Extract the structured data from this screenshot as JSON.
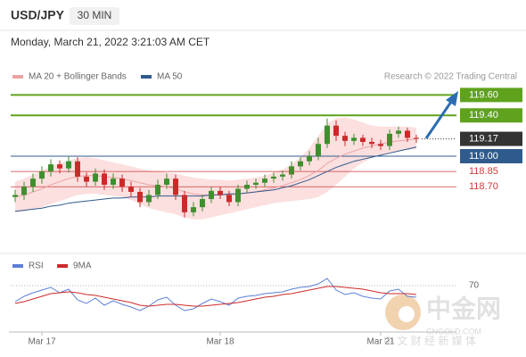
{
  "chart_data": {
    "type": "candlestick",
    "title": "USD/JPY",
    "interval": "30 MIN",
    "subtitle": "Monday, March 21, 2022 3:21:03 AM CET",
    "credit": "Research © 2022 Trading Central",
    "categories": [
      null,
      null,
      null,
      "Mar 17",
      null,
      null,
      null,
      null,
      null,
      null,
      null,
      null,
      null,
      null,
      null,
      null,
      null,
      null,
      null,
      null,
      null,
      null,
      null,
      "Mar 18",
      null,
      null,
      null,
      null,
      null,
      null,
      null,
      null,
      null,
      null,
      null,
      null,
      null,
      null,
      null,
      null,
      null,
      "Mar 21",
      null,
      null,
      null,
      null
    ],
    "open": [
      118.6,
      118.62,
      118.7,
      118.78,
      118.85,
      118.92,
      118.88,
      118.95,
      118.8,
      118.75,
      118.83,
      118.72,
      118.78,
      118.7,
      118.65,
      118.55,
      118.62,
      118.72,
      118.78,
      118.62,
      118.45,
      118.5,
      118.58,
      118.66,
      118.62,
      118.55,
      118.68,
      118.72,
      118.74,
      118.78,
      118.8,
      118.82,
      118.9,
      118.95,
      119.0,
      119.12,
      119.3,
      119.2,
      119.15,
      119.18,
      119.14,
      119.12,
      119.1,
      119.22,
      119.25,
      119.18
    ],
    "high": [
      118.67,
      118.75,
      118.83,
      118.9,
      118.97,
      118.96,
      119.0,
      118.99,
      118.84,
      118.88,
      118.87,
      118.83,
      118.82,
      118.75,
      118.69,
      118.67,
      118.77,
      118.83,
      118.82,
      118.66,
      118.55,
      118.62,
      118.7,
      118.7,
      118.66,
      118.72,
      118.76,
      118.78,
      118.82,
      118.84,
      118.86,
      118.95,
      118.99,
      119.05,
      119.18,
      119.37,
      119.35,
      119.24,
      119.22,
      119.21,
      119.18,
      119.16,
      119.26,
      119.29,
      119.28,
      119.21
    ],
    "low": [
      118.55,
      118.57,
      118.65,
      118.73,
      118.8,
      118.83,
      118.84,
      118.75,
      118.7,
      118.71,
      118.67,
      118.68,
      118.65,
      118.6,
      118.5,
      118.51,
      118.58,
      118.68,
      118.57,
      118.4,
      118.41,
      118.46,
      118.54,
      118.58,
      118.51,
      118.51,
      118.64,
      118.68,
      118.7,
      118.74,
      118.76,
      118.78,
      118.86,
      118.91,
      118.96,
      119.08,
      119.15,
      119.1,
      119.11,
      119.1,
      119.08,
      119.06,
      119.06,
      119.18,
      119.14,
      119.13
    ],
    "close": [
      118.62,
      118.7,
      118.78,
      118.85,
      118.92,
      118.88,
      118.95,
      118.8,
      118.75,
      118.83,
      118.72,
      118.78,
      118.7,
      118.65,
      118.55,
      118.62,
      118.72,
      118.78,
      118.62,
      118.45,
      118.5,
      118.58,
      118.66,
      118.62,
      118.55,
      118.68,
      118.72,
      118.74,
      118.78,
      118.8,
      118.82,
      118.9,
      118.95,
      119.0,
      119.12,
      119.3,
      119.2,
      119.15,
      119.18,
      119.14,
      119.12,
      119.1,
      119.22,
      119.25,
      119.18,
      119.17
    ],
    "up_color": "#3f8f2f",
    "down_color": "#cc2a2a",
    "ylim": [
      118.3,
      119.7
    ],
    "overlays": [
      {
        "name": "MA 20 + Bollinger Bands",
        "color": "#eaa3a3",
        "band_color": "#fbd9d9",
        "values": [
          118.6,
          118.62,
          118.65,
          118.68,
          118.72,
          118.75,
          118.78,
          118.8,
          118.81,
          118.81,
          118.8,
          118.79,
          118.78,
          118.76,
          118.74,
          118.72,
          118.71,
          118.7,
          118.68,
          118.65,
          118.63,
          118.62,
          118.62,
          118.62,
          118.62,
          118.63,
          118.64,
          118.65,
          118.67,
          118.69,
          118.71,
          118.74,
          118.77,
          118.81,
          118.86,
          118.93,
          118.98,
          119.02,
          119.05,
          119.08,
          119.1,
          119.12,
          119.14,
          119.15,
          119.16,
          119.17
        ],
        "upper": [
          118.75,
          118.78,
          118.82,
          118.86,
          118.9,
          118.93,
          118.96,
          118.98,
          118.99,
          118.98,
          118.96,
          118.94,
          118.92,
          118.9,
          118.88,
          118.86,
          118.85,
          118.84,
          118.83,
          118.81,
          118.79,
          118.78,
          118.77,
          118.77,
          118.76,
          118.77,
          118.78,
          118.79,
          118.81,
          118.84,
          118.87,
          118.92,
          118.99,
          119.08,
          119.2,
          119.32,
          119.37,
          119.38,
          119.36,
          119.33,
          119.3,
          119.29,
          119.29,
          119.29,
          119.29,
          119.28
        ],
        "lower": [
          118.45,
          118.46,
          118.48,
          118.5,
          118.53,
          118.56,
          118.59,
          118.62,
          118.63,
          118.63,
          118.62,
          118.61,
          118.6,
          118.57,
          118.53,
          118.49,
          118.47,
          118.45,
          118.43,
          118.4,
          118.38,
          118.38,
          118.4,
          118.42,
          118.44,
          118.46,
          118.48,
          118.5,
          118.52,
          118.54,
          118.55,
          118.56,
          118.57,
          118.58,
          118.6,
          118.65,
          118.72,
          118.8,
          118.88,
          118.94,
          118.98,
          119.01,
          119.03,
          119.05,
          119.06,
          119.07
        ]
      },
      {
        "name": "MA 50",
        "color": "#2f5b8c",
        "values": [
          118.46,
          118.47,
          118.48,
          118.49,
          118.51,
          118.52,
          118.54,
          118.55,
          118.56,
          118.57,
          118.58,
          118.59,
          118.59,
          118.6,
          118.6,
          118.6,
          118.61,
          118.61,
          118.61,
          118.61,
          118.61,
          118.61,
          118.62,
          118.62,
          118.63,
          118.63,
          118.64,
          118.65,
          118.66,
          118.67,
          118.69,
          118.71,
          118.74,
          118.77,
          118.81,
          118.85,
          118.89,
          118.92,
          118.95,
          118.97,
          118.99,
          119.01,
          119.03,
          119.05,
          119.07,
          119.09
        ]
      }
    ],
    "levels": [
      {
        "value": 119.6,
        "label": "119.60"
      },
      {
        "value": 119.4,
        "label": "119.40"
      },
      119.17,
      {
        "value": 119.0,
        "label": "119.00"
      },
      118.85,
      {
        "value": 118.7,
        "label": "118.70"
      }
    ],
    "level_colors": [
      "#5fa21e",
      "#5fa21e",
      "#333333",
      "#2f5b8c",
      "#cc3a3a",
      "#cc3a3a"
    ],
    "level_styles": [
      "solid",
      "solid",
      "dotted",
      "solid",
      "thin",
      "thin"
    ],
    "rsi": {
      "ylim": [
        40,
        90
      ],
      "yticks": [
        70
      ],
      "series": [
        {
          "name": "RSI",
          "color": "#5b7fd6",
          "values": [
            52,
            58,
            62,
            65,
            68,
            62,
            66,
            54,
            50,
            56,
            48,
            53,
            49,
            46,
            42,
            47,
            54,
            57,
            48,
            42,
            44,
            50,
            55,
            52,
            48,
            56,
            58,
            59,
            61,
            62,
            63,
            66,
            68,
            69,
            72,
            78,
            65,
            60,
            62,
            58,
            56,
            55,
            64,
            66,
            58,
            57
          ]
        },
        {
          "name": "9MA",
          "color": "#cc2a2a",
          "values": [
            50,
            52,
            55,
            58,
            61,
            62,
            63,
            62,
            60,
            59,
            57,
            55,
            53,
            51,
            48,
            47,
            48,
            49,
            49,
            48,
            47,
            47,
            48,
            49,
            50,
            51,
            53,
            55,
            57,
            58,
            60,
            61,
            63,
            65,
            67,
            69,
            69,
            68,
            67,
            66,
            64,
            62,
            61,
            61,
            61,
            60
          ]
        }
      ]
    }
  },
  "watermark": {
    "logo": "中金网",
    "site": "CNGOLD.COM",
    "tagline": "中 文 财 经 新 媒 体"
  }
}
